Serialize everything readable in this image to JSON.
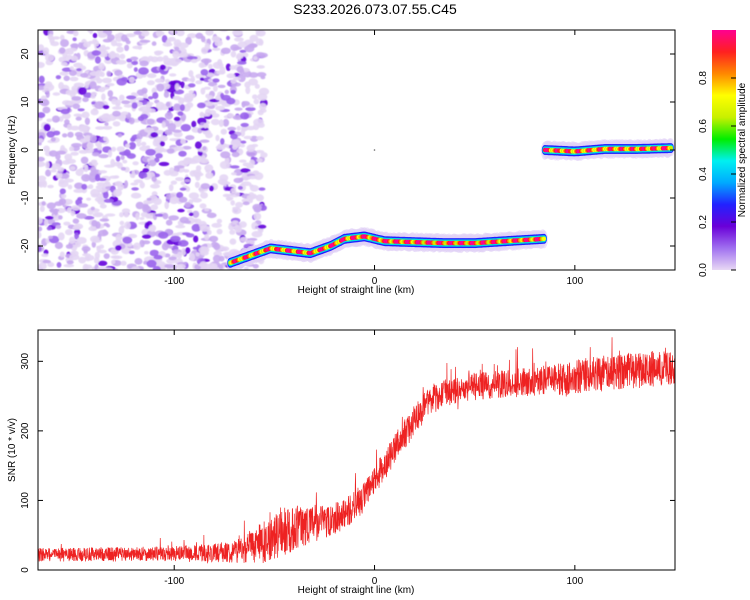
{
  "title": "S233.2026.073.07.55.C45",
  "colors": {
    "axis": "#000000",
    "snr_line": "#ee2222",
    "colorbar_stops": [
      "#e8d8f4",
      "#a070f0",
      "#6a00d8",
      "#2222ff",
      "#00aaff",
      "#00f0f0",
      "#00ee00",
      "#c8f000",
      "#ffff00",
      "#ff8800",
      "#ff2020",
      "#ff0090"
    ]
  },
  "chart_data": [
    {
      "type": "heatmap",
      "name": "spectrogram",
      "xlabel": "Height of straight line (km)",
      "ylabel": "Frequency (Hz)",
      "xlim": [
        -168,
        150
      ],
      "ylim": [
        -25,
        25
      ],
      "x_ticks": [
        -100,
        0,
        100
      ],
      "y_ticks": [
        -20,
        -10,
        0,
        10,
        20
      ],
      "colorbar": {
        "label": "Normalized spectral amplitude",
        "range": [
          0,
          1
        ],
        "ticks": [
          "0.0",
          "0.2",
          "0.4",
          "0.6",
          "0.8"
        ]
      },
      "noise_region": {
        "x": [
          -168,
          -55
        ],
        "y": [
          -25,
          25
        ],
        "amplitude": 0.1
      },
      "ridge": [
        {
          "x": -72,
          "y": -23.5
        },
        {
          "x": -62,
          "y": -22
        },
        {
          "x": -52,
          "y": -20.5
        },
        {
          "x": -42,
          "y": -21
        },
        {
          "x": -32,
          "y": -21.5
        },
        {
          "x": -22,
          "y": -20
        },
        {
          "x": -15,
          "y": -18.5
        },
        {
          "x": -5,
          "y": -18
        },
        {
          "x": 5,
          "y": -19
        },
        {
          "x": 20,
          "y": -19.2
        },
        {
          "x": 35,
          "y": -19.4
        },
        {
          "x": 50,
          "y": -19.4
        },
        {
          "x": 65,
          "y": -19
        },
        {
          "x": 85,
          "y": -18.5
        },
        {
          "x": 85,
          "y": 0
        },
        {
          "x": 100,
          "y": -0.3
        },
        {
          "x": 115,
          "y": 0.2
        },
        {
          "x": 130,
          "y": 0.2
        },
        {
          "x": 148,
          "y": 0.4
        }
      ]
    },
    {
      "type": "line",
      "name": "snr",
      "xlabel": "Height of straight line (km)",
      "ylabel": "SNR (10 * v/v)",
      "xlim": [
        -168,
        150
      ],
      "ylim": [
        0,
        345
      ],
      "x_ticks": [
        -100,
        0,
        100
      ],
      "y_ticks": [
        0,
        100,
        200,
        300
      ],
      "series": [
        {
          "x": [
            -168,
            -150,
            -130,
            -110,
            -90,
            -75,
            -65,
            -55,
            -45,
            -35,
            -25,
            -15,
            -5,
            5,
            15,
            25,
            35,
            45,
            55,
            65,
            75,
            85,
            95,
            105,
            115,
            125,
            135,
            145,
            150
          ],
          "values": [
            22,
            22,
            23,
            23,
            24,
            25,
            30,
            40,
            55,
            65,
            70,
            80,
            105,
            150,
            195,
            235,
            255,
            262,
            265,
            268,
            270,
            272,
            275,
            280,
            283,
            286,
            288,
            290,
            290
          ],
          "noise_amplitude": [
            10,
            10,
            10,
            10,
            12,
            14,
            20,
            30,
            35,
            30,
            25,
            22,
            22,
            22,
            22,
            22,
            20,
            20,
            20,
            20,
            22,
            22,
            24,
            25,
            26,
            26,
            26,
            26,
            26
          ]
        }
      ]
    }
  ]
}
